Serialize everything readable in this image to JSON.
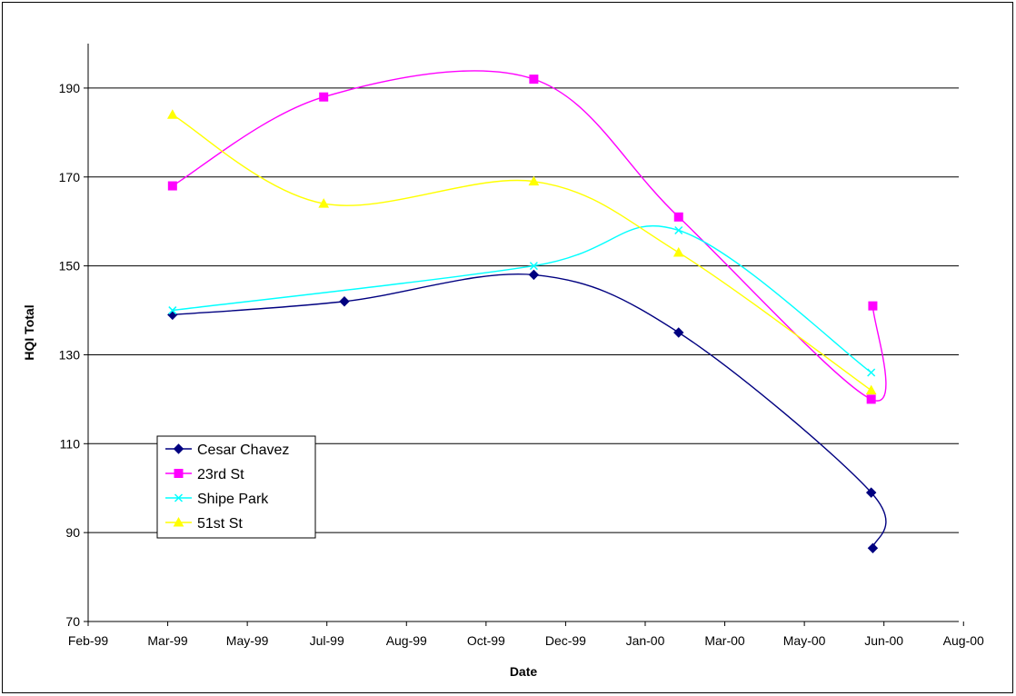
{
  "chart_data": {
    "type": "line",
    "xlabel": "Date",
    "ylabel": "HQI Total",
    "xlim": [
      "1999-02-01",
      "2000-08-01"
    ],
    "ylim": [
      70,
      190
    ],
    "x_ticks": [
      "1999-02-01",
      "1999-03-23",
      "1999-05-12",
      "1999-07-01",
      "1999-08-20",
      "1999-10-09",
      "1999-11-28",
      "2000-01-17",
      "2000-03-07",
      "2000-04-26",
      "2000-06-15",
      "2000-08-04"
    ],
    "x_tick_labels": [
      "Feb-99",
      "Mar-99",
      "May-99",
      "Jul-99",
      "Aug-99",
      "Oct-99",
      "Dec-99",
      "Jan-00",
      "Mar-00",
      "May-00",
      "Jun-00",
      "Aug-00"
    ],
    "y_ticks": [
      70,
      90,
      110,
      130,
      150,
      170,
      190
    ],
    "y_tick_labels": [
      "70",
      "90",
      "110",
      "130",
      "150",
      "170",
      "190"
    ],
    "grid": "horizontal",
    "legend_position": "lower-left",
    "series": [
      {
        "name": "Cesar Chavez",
        "color": "#000080",
        "marker": "diamond",
        "points": [
          {
            "x": "1999-03-26",
            "y": 139
          },
          {
            "x": "1999-07-12",
            "y": 142
          },
          {
            "x": "1999-11-08",
            "y": 148
          },
          {
            "x": "2000-02-07",
            "y": 135
          },
          {
            "x": "2000-06-07",
            "y": 99
          },
          {
            "x": "2000-06-08",
            "y": 86.5
          }
        ]
      },
      {
        "name": "23rd St",
        "color": "#FF00FF",
        "marker": "square",
        "points": [
          {
            "x": "1999-03-26",
            "y": 168
          },
          {
            "x": "1999-06-29",
            "y": 188
          },
          {
            "x": "1999-11-08",
            "y": 192
          },
          {
            "x": "2000-02-07",
            "y": 161
          },
          {
            "x": "2000-06-07",
            "y": 120
          },
          {
            "x": "2000-06-08",
            "y": 141
          }
        ]
      },
      {
        "name": "Shipe Park",
        "color": "#00FFFF",
        "marker": "x",
        "points": [
          {
            "x": "1999-03-26",
            "y": 140
          },
          {
            "x": "1999-11-08",
            "y": 150
          },
          {
            "x": "2000-02-07",
            "y": 158
          },
          {
            "x": "2000-06-07",
            "y": 126
          }
        ]
      },
      {
        "name": "51st St",
        "color": "#FFFF00",
        "marker": "triangle",
        "points": [
          {
            "x": "1999-03-26",
            "y": 184
          },
          {
            "x": "1999-06-29",
            "y": 164
          },
          {
            "x": "1999-11-08",
            "y": 169
          },
          {
            "x": "2000-02-07",
            "y": 153
          },
          {
            "x": "2000-06-07",
            "y": 122
          }
        ]
      }
    ]
  }
}
